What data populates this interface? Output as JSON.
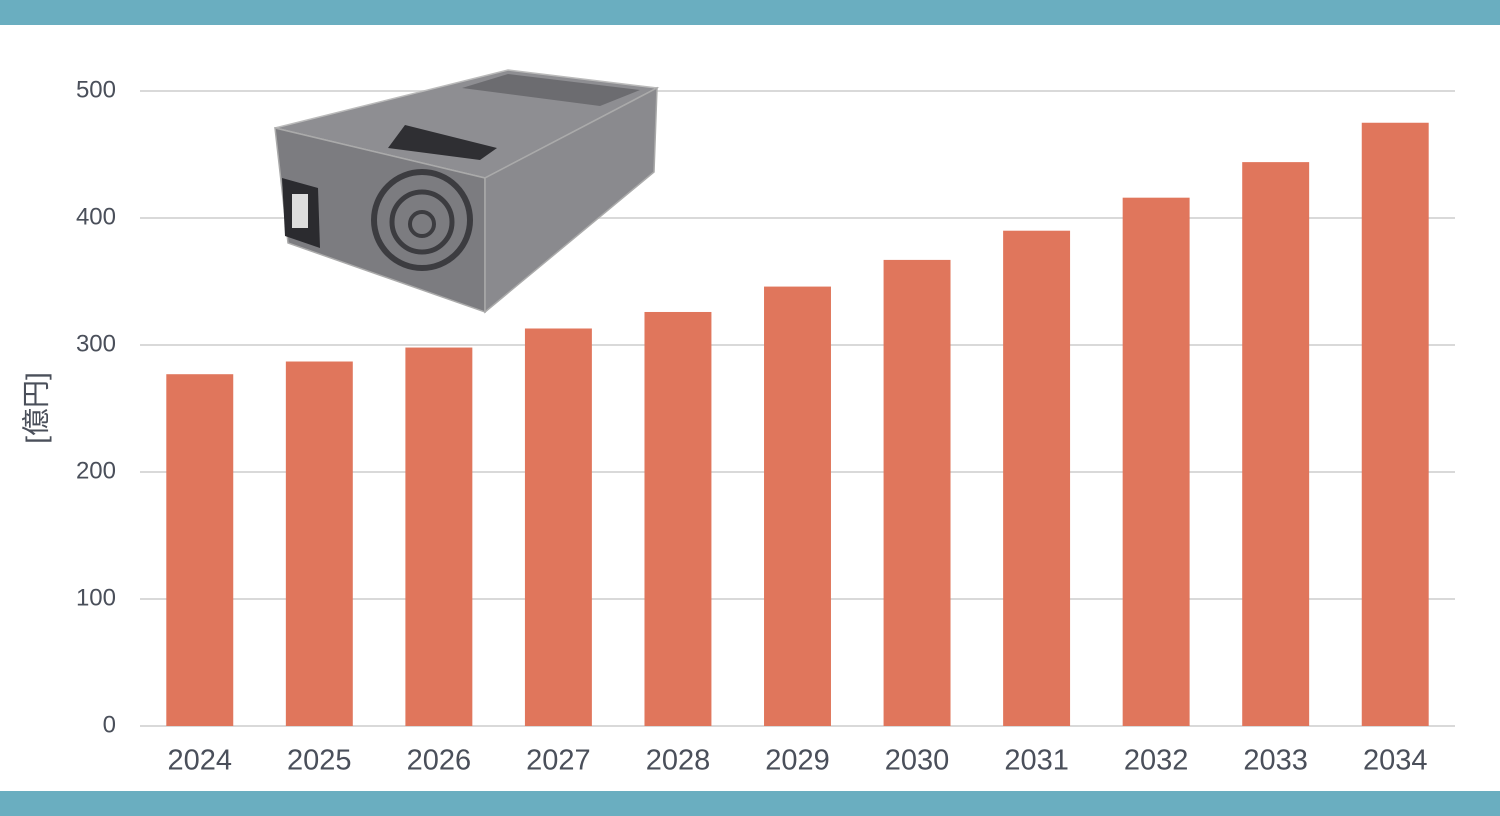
{
  "chart_data": {
    "type": "bar",
    "y_label": "[億円]",
    "categories": [
      "2024",
      "2025",
      "2026",
      "2027",
      "2028",
      "2029",
      "2030",
      "2031",
      "2032",
      "2033",
      "2034"
    ],
    "values": [
      277,
      287,
      298,
      313,
      326,
      346,
      367,
      390,
      416,
      444,
      475
    ],
    "color": "#e0765c",
    "ylim": [
      0,
      500
    ],
    "yticks": [
      0,
      100,
      200,
      300,
      400,
      500
    ],
    "grid": true
  }
}
